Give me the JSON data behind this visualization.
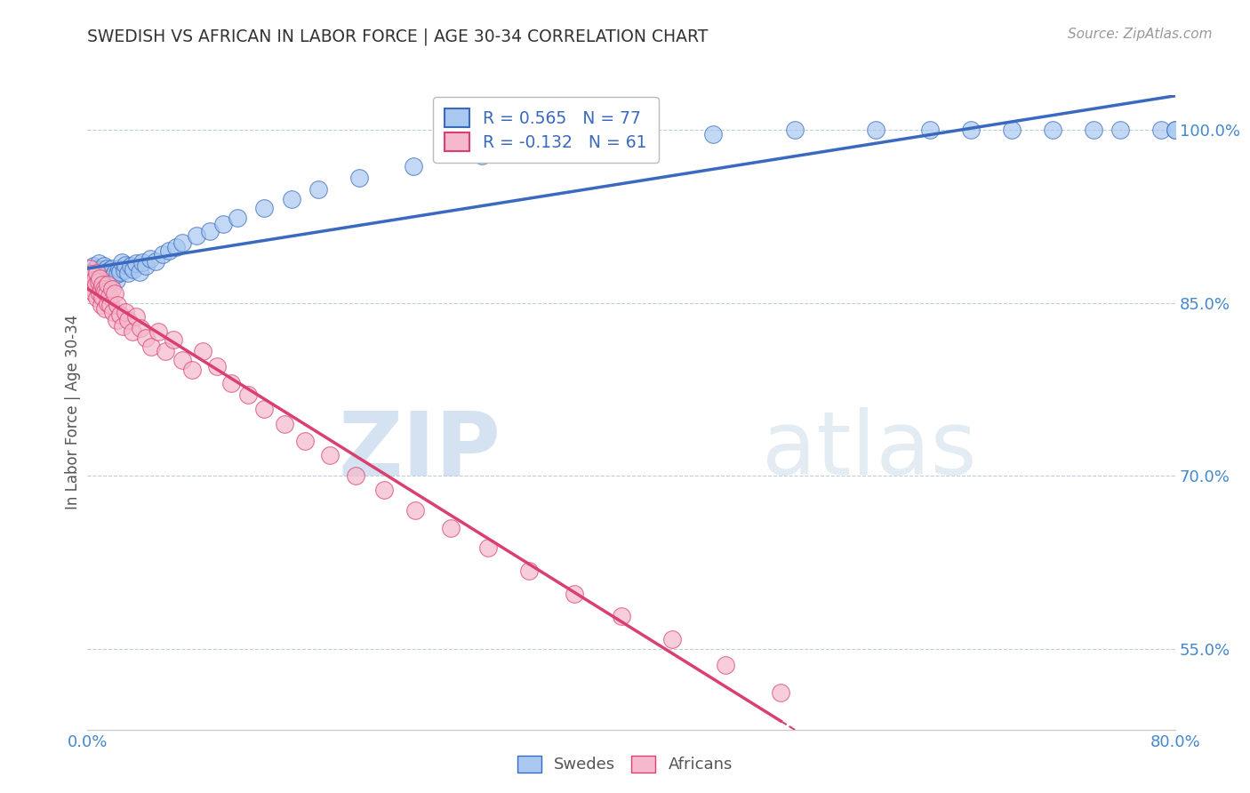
{
  "title": "SWEDISH VS AFRICAN IN LABOR FORCE | AGE 30-34 CORRELATION CHART",
  "source": "Source: ZipAtlas.com",
  "ylabel": "In Labor Force | Age 30-34",
  "xlim": [
    0.0,
    0.8
  ],
  "ylim": [
    0.48,
    1.03
  ],
  "x_ticks": [
    0.0,
    0.1,
    0.2,
    0.3,
    0.4,
    0.5,
    0.6,
    0.7,
    0.8
  ],
  "y_ticks": [
    0.55,
    0.7,
    0.85,
    1.0
  ],
  "y_tick_labels": [
    "55.0%",
    "70.0%",
    "85.0%",
    "100.0%"
  ],
  "swedish_R": 0.565,
  "swedish_N": 77,
  "african_R": -0.132,
  "african_N": 61,
  "swedish_color": "#a8c8f0",
  "african_color": "#f5b8cc",
  "swedish_line_color": "#3a6abf",
  "african_line_color": "#d94070",
  "watermark_zip": "ZIP",
  "watermark_atlas": "atlas",
  "swedes_x": [
    0.002,
    0.003,
    0.004,
    0.005,
    0.005,
    0.006,
    0.006,
    0.007,
    0.007,
    0.008,
    0.008,
    0.009,
    0.009,
    0.01,
    0.01,
    0.01,
    0.011,
    0.011,
    0.012,
    0.012,
    0.013,
    0.013,
    0.014,
    0.014,
    0.015,
    0.015,
    0.016,
    0.016,
    0.017,
    0.018,
    0.018,
    0.019,
    0.02,
    0.021,
    0.022,
    0.023,
    0.024,
    0.025,
    0.027,
    0.028,
    0.03,
    0.032,
    0.034,
    0.036,
    0.038,
    0.04,
    0.043,
    0.046,
    0.05,
    0.055,
    0.06,
    0.065,
    0.07,
    0.08,
    0.09,
    0.1,
    0.11,
    0.13,
    0.15,
    0.17,
    0.2,
    0.24,
    0.29,
    0.34,
    0.4,
    0.46,
    0.52,
    0.58,
    0.62,
    0.65,
    0.68,
    0.71,
    0.74,
    0.76,
    0.79,
    0.8,
    0.8
  ],
  "swedes_y": [
    0.875,
    0.87,
    0.882,
    0.868,
    0.878,
    0.88,
    0.873,
    0.876,
    0.871,
    0.884,
    0.877,
    0.869,
    0.875,
    0.872,
    0.879,
    0.866,
    0.876,
    0.873,
    0.87,
    0.882,
    0.868,
    0.877,
    0.873,
    0.88,
    0.87,
    0.876,
    0.873,
    0.878,
    0.868,
    0.876,
    0.88,
    0.873,
    0.876,
    0.87,
    0.875,
    0.88,
    0.877,
    0.885,
    0.878,
    0.883,
    0.876,
    0.882,
    0.879,
    0.884,
    0.877,
    0.885,
    0.882,
    0.888,
    0.886,
    0.892,
    0.895,
    0.898,
    0.902,
    0.908,
    0.912,
    0.918,
    0.924,
    0.932,
    0.94,
    0.948,
    0.958,
    0.968,
    0.978,
    0.985,
    0.992,
    0.996,
    1.0,
    1.0,
    1.0,
    1.0,
    1.0,
    1.0,
    1.0,
    1.0,
    1.0,
    1.0,
    1.0
  ],
  "africans_x": [
    0.002,
    0.003,
    0.004,
    0.005,
    0.005,
    0.006,
    0.007,
    0.007,
    0.008,
    0.009,
    0.009,
    0.01,
    0.01,
    0.011,
    0.011,
    0.012,
    0.013,
    0.013,
    0.014,
    0.015,
    0.015,
    0.016,
    0.017,
    0.018,
    0.019,
    0.02,
    0.021,
    0.022,
    0.024,
    0.026,
    0.028,
    0.03,
    0.033,
    0.036,
    0.039,
    0.043,
    0.047,
    0.052,
    0.057,
    0.063,
    0.07,
    0.077,
    0.085,
    0.095,
    0.106,
    0.118,
    0.13,
    0.145,
    0.16,
    0.178,
    0.197,
    0.218,
    0.241,
    0.267,
    0.295,
    0.325,
    0.358,
    0.393,
    0.43,
    0.469,
    0.51
  ],
  "africans_y": [
    0.88,
    0.875,
    0.862,
    0.87,
    0.858,
    0.866,
    0.876,
    0.854,
    0.868,
    0.858,
    0.871,
    0.862,
    0.848,
    0.866,
    0.855,
    0.862,
    0.86,
    0.845,
    0.858,
    0.866,
    0.85,
    0.856,
    0.848,
    0.862,
    0.842,
    0.858,
    0.835,
    0.848,
    0.84,
    0.83,
    0.842,
    0.835,
    0.825,
    0.838,
    0.828,
    0.82,
    0.812,
    0.825,
    0.808,
    0.818,
    0.8,
    0.792,
    0.808,
    0.795,
    0.78,
    0.77,
    0.758,
    0.745,
    0.73,
    0.718,
    0.7,
    0.688,
    0.67,
    0.655,
    0.638,
    0.618,
    0.598,
    0.578,
    0.558,
    0.536,
    0.512
  ]
}
